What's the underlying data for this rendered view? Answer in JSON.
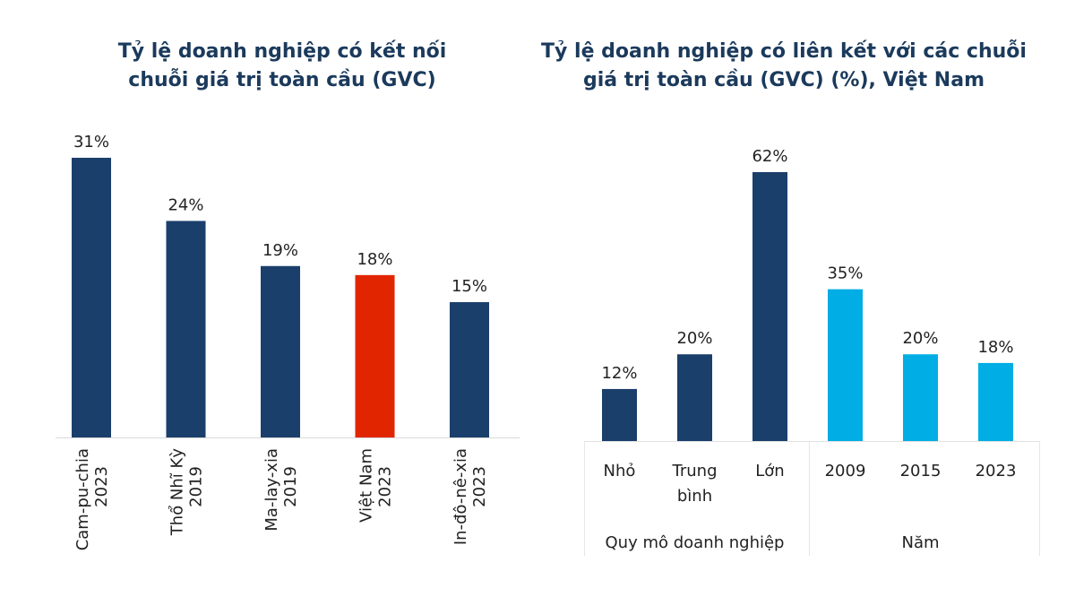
{
  "chart_data": [
    {
      "type": "bar",
      "title": "Tỷ lệ doanh nghiệp có kết nối chuỗi giá trị toàn cầu (GVC)",
      "title_lines": [
        "Tỷ lệ doanh nghiệp có kết nối",
        "chuỗi giá trị toàn cầu (GVC)"
      ],
      "xlabel": "",
      "ylabel": "",
      "ylim": [
        0,
        31
      ],
      "grid": false,
      "categories": [
        {
          "name": "Cam-pu-chia",
          "year": "2023"
        },
        {
          "name": "Thổ Nhĩ Kỳ",
          "year": "2019"
        },
        {
          "name": "Ma-lay-xia",
          "year": "2019"
        },
        {
          "name": "Việt Nam",
          "year": "2023"
        },
        {
          "name": "In-đô-nê-xia",
          "year": "2023"
        }
      ],
      "values": [
        31,
        24,
        19,
        18,
        15
      ],
      "labels": [
        "31%",
        "24%",
        "19%",
        "18%",
        "15%"
      ],
      "colors": [
        "#1b3f6b",
        "#1b3f6b",
        "#1b3f6b",
        "#e12500",
        "#1b3f6b"
      ]
    },
    {
      "type": "bar",
      "title": "Tỷ lệ doanh nghiệp có liên kết với các chuỗi giá trị toàn cầu (GVC) (%), Việt Nam",
      "title_lines": [
        "Tỷ lệ doanh nghiệp có liên kết với các chuỗi",
        "giá trị toàn cầu (GVC) (%), Việt Nam"
      ],
      "xlabel": "",
      "ylabel": "",
      "ylim": [
        0,
        62
      ],
      "grid": false,
      "groups": [
        {
          "label": "Quy mô doanh nghiệp",
          "categories": [
            [
              "Nhỏ"
            ],
            [
              "Trung",
              "bình"
            ],
            [
              "Lớn"
            ]
          ],
          "values": [
            12,
            20,
            62
          ],
          "labels": [
            "12%",
            "20%",
            "62%"
          ],
          "color": "#1b3f6b"
        },
        {
          "label": "Năm",
          "categories": [
            [
              "2009"
            ],
            [
              "2015"
            ],
            [
              "2023"
            ]
          ],
          "values": [
            35,
            20,
            18
          ],
          "labels": [
            "35%",
            "20%",
            "18%"
          ],
          "color": "#00ade4"
        }
      ]
    }
  ]
}
